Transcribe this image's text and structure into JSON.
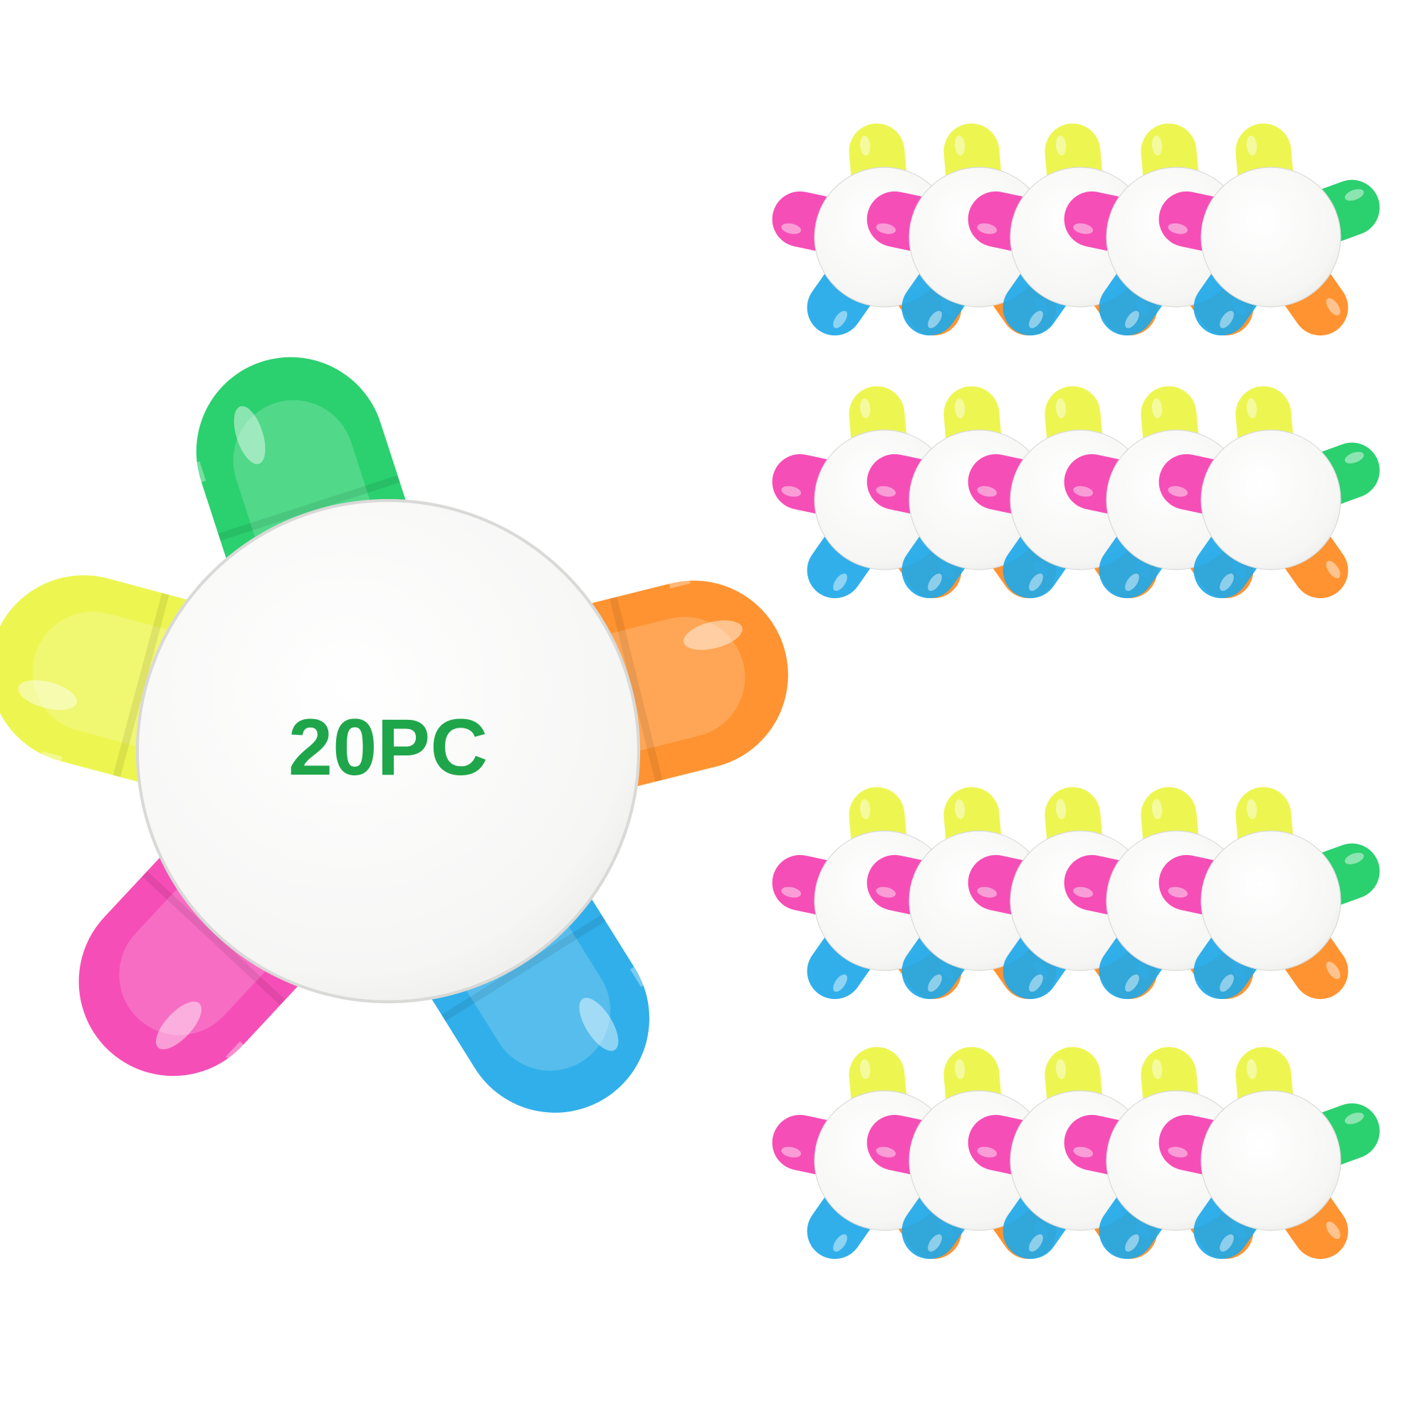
{
  "product": {
    "quantity_label": "20PC",
    "label_color": "#1fa64a"
  },
  "petal_colors": {
    "green": "#19cc63",
    "orange": "#ff8a1f",
    "blue": "#1fa8e8",
    "pink": "#f53fb1",
    "yellow": "#ecf542",
    "body": "#f7f7f6"
  },
  "icons": {
    "hero": "flower-highlighter-icon",
    "grid_item": "mini-flower-highlighter-icon"
  },
  "grid": {
    "rows": 4,
    "columns": 5
  }
}
